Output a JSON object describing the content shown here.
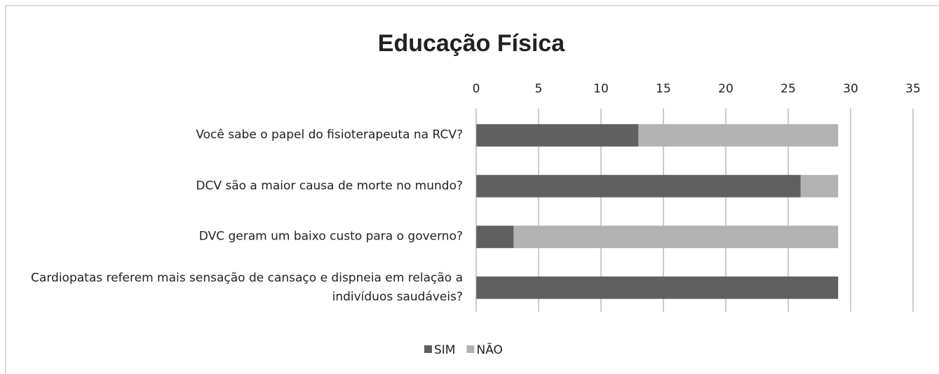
{
  "chart_data": {
    "type": "stacked-barh",
    "title": "Educação Física",
    "categories": [
      "Você sabe o papel do fisioterapeuta na RCV?",
      "DCV são a maior causa de morte no mundo?",
      "DVC geram um baixo custo para o governo?",
      "Cardiopatas referem mais sensação de cansaço e dispneia em relação a indivíduos saudáveis?"
    ],
    "series": [
      {
        "name": "SIM",
        "color": "#606060",
        "values": [
          13,
          26,
          3,
          29
        ]
      },
      {
        "name": "NÃO",
        "color": "#b3b3b3",
        "values": [
          16,
          3,
          26,
          0
        ]
      }
    ],
    "xlim": [
      0,
      35
    ],
    "xticks": [
      0,
      5,
      10,
      15,
      20,
      25,
      30,
      35
    ],
    "grid": true,
    "legend": "bottom"
  }
}
